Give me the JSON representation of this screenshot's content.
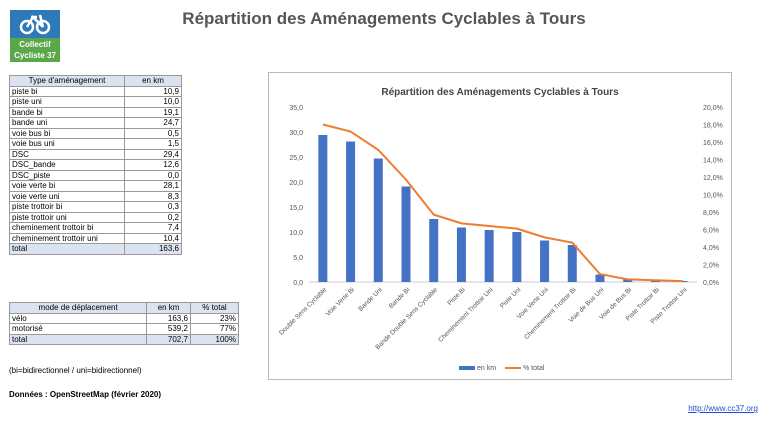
{
  "logo": {
    "text_line1": "Collectif",
    "text_line2": "Cycliste 37"
  },
  "title": "Répartition des Aménagements Cyclables à Tours",
  "table_types": {
    "headers": [
      "Type d'aménagement",
      "en km"
    ],
    "rows": [
      [
        "piste bi",
        "10,9"
      ],
      [
        "piste uni",
        "10,0"
      ],
      [
        "bande bi",
        "19,1"
      ],
      [
        "bande uni",
        "24,7"
      ],
      [
        "voie bus bi",
        "0,5"
      ],
      [
        "voie bus uni",
        "1,5"
      ],
      [
        "DSC",
        "29,4"
      ],
      [
        "DSC_bande",
        "12,6"
      ],
      [
        "DSC_piste",
        "0,0"
      ],
      [
        "voie verte bi",
        "28,1"
      ],
      [
        "voie verte uni",
        "8,3"
      ],
      [
        "piste trottoir bi",
        "0,3"
      ],
      [
        "piste trottoir uni",
        "0,2"
      ],
      [
        "cheminement trottoir bi",
        "7,4"
      ],
      [
        "cheminement trottoir uni",
        "10,4"
      ]
    ],
    "total": [
      "total",
      "163,6"
    ]
  },
  "table_modes": {
    "headers": [
      "mode de déplacement",
      "en km",
      "% total"
    ],
    "rows": [
      [
        "vélo",
        "163,6",
        "23%"
      ],
      [
        "motorisé",
        "539,2",
        "77%"
      ]
    ],
    "total": [
      "total",
      "702,7",
      "100%"
    ]
  },
  "note": "(bi=bidirectionnel / uni=bidirectionnel)",
  "source": "Données : OpenStreetMap (février 2020)",
  "url": "http://www.cc37.org",
  "chart_data": {
    "type": "bar+line",
    "title": "Répartition des Aménagements Cyclables à Tours",
    "categories": [
      "Double Sens Cyclable",
      "Voie Verte Bi",
      "Bande Uni",
      "Bande Bi",
      "Bande Double Sens Cyclable",
      "Piste Bi",
      "Cheminement Trottoir Uni",
      "Piste Uni",
      "Voie Verte Uni",
      "Cheminement Trottoir Bi",
      "Voie de Bus Uni",
      "Voie de Bus Bi",
      "Piste Trottoir Bi",
      "Piste Trottoir Uni"
    ],
    "series": [
      {
        "name": "en km",
        "type": "bar",
        "axis": "left",
        "color": "#4472c4",
        "values": [
          29.4,
          28.1,
          24.7,
          19.1,
          12.6,
          10.9,
          10.4,
          10.0,
          8.3,
          7.4,
          1.5,
          0.5,
          0.3,
          0.2
        ]
      },
      {
        "name": "% total",
        "type": "line",
        "axis": "right",
        "color": "#ed7d31",
        "values": [
          18.0,
          17.2,
          15.1,
          11.7,
          7.7,
          6.7,
          6.4,
          6.1,
          5.1,
          4.5,
          0.9,
          0.3,
          0.2,
          0.1
        ]
      }
    ],
    "ylim_left": [
      0,
      35
    ],
    "yticks_left": [
      "0,0",
      "5,0",
      "10,0",
      "15,0",
      "20,0",
      "25,0",
      "30,0",
      "35,0"
    ],
    "ylim_right": [
      0,
      20
    ],
    "yticks_right": [
      "0,0%",
      "2,0%",
      "4,0%",
      "6,0%",
      "8,0%",
      "10,0%",
      "12,0%",
      "14,0%",
      "16,0%",
      "18,0%",
      "20,0%"
    ],
    "legend": "bottom",
    "grid": false
  }
}
